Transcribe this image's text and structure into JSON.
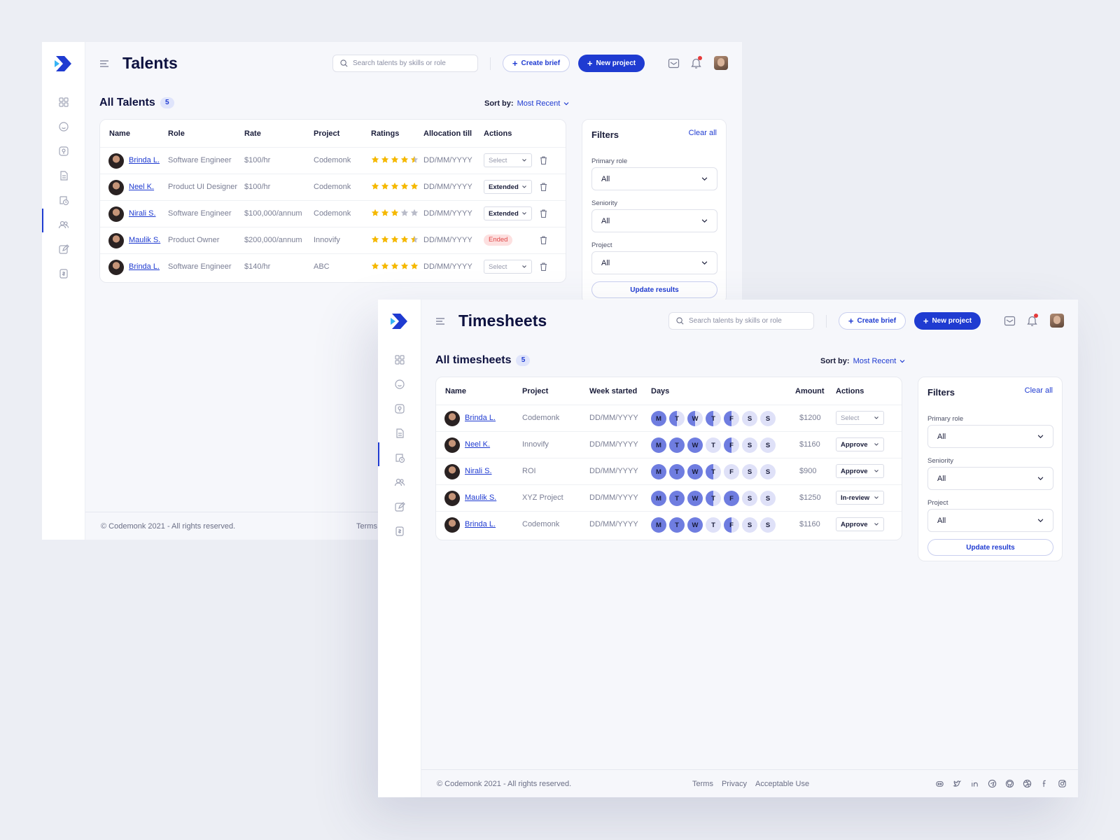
{
  "talents_window": {
    "title": "Talents",
    "search_placeholder": "Search talents by skills or role",
    "create_brief": "Create brief",
    "new_project": "New project",
    "section_title": "All Talents",
    "count": "5",
    "sort_label": "Sort by:",
    "sort_value": "Most Recent",
    "columns": [
      "Name",
      "Role",
      "Rate",
      "Project",
      "Ratings",
      "Allocation till",
      "Actions"
    ],
    "rows": [
      {
        "name": "Brinda L.",
        "role": "Software Engineer",
        "rate": "$100/hr",
        "project": "Codemonk",
        "rating": 4.5,
        "date": "DD/MM/YYYY",
        "action": "Select",
        "action_type": "select-dim"
      },
      {
        "name": "Neel K.",
        "role": "Product UI Designer",
        "rate": "$100/hr",
        "project": "Codemonk",
        "rating": 5,
        "date": "DD/MM/YYYY",
        "action": "Extended",
        "action_type": "select-strong"
      },
      {
        "name": "Nirali S.",
        "role": "Software Engineer",
        "rate": "$100,000/annum",
        "project": "Codemonk",
        "rating": 3,
        "date": "DD/MM/YYYY",
        "action": "Extended",
        "action_type": "select-strong"
      },
      {
        "name": "Maulik S.",
        "role": "Product Owner",
        "rate": "$200,000/annum",
        "project": "Innovify",
        "rating": 4.5,
        "date": "DD/MM/YYYY",
        "action": "Ended",
        "action_type": "badge"
      },
      {
        "name": "Brinda L.",
        "role": "Software Engineer",
        "rate": "$140/hr",
        "project": "ABC",
        "rating": 5,
        "date": "DD/MM/YYYY",
        "action": "Select",
        "action_type": "select-dim"
      }
    ],
    "filters": {
      "title": "Filters",
      "clear": "Clear all",
      "primary_role_label": "Primary role",
      "primary_role_value": "All",
      "seniority_label": "Seniority",
      "seniority_value": "All",
      "project_label": "Project",
      "project_value": "All",
      "update": "Update results"
    },
    "footer": {
      "copyright": "© Codemonk 2021 - All rights reserved.",
      "terms": "Terms"
    }
  },
  "timesheets_window": {
    "title": "Timesheets",
    "search_placeholder": "Search talents by skills or role",
    "create_brief": "Create brief",
    "new_project": "New project",
    "section_title": "All timesheets",
    "count": "5",
    "sort_label": "Sort by:",
    "sort_value": "Most Recent",
    "columns": [
      "Name",
      "Project",
      "Week started",
      "Days",
      "Amount",
      "Actions"
    ],
    "rows": [
      {
        "name": "Brinda L.",
        "project": "Codemonk",
        "week": "DD/MM/YYYY",
        "days": [
          "full",
          "half",
          "half",
          "half",
          "half",
          "empty",
          "empty"
        ],
        "amount": "$1200",
        "action": "Select",
        "action_type": "select-dim"
      },
      {
        "name": "Neel K.",
        "project": "Innovify",
        "week": "DD/MM/YYYY",
        "days": [
          "full",
          "full",
          "full",
          "empty",
          "half",
          "empty",
          "empty"
        ],
        "amount": "$1160",
        "action": "Approve",
        "action_type": "select-strong"
      },
      {
        "name": "Nirali S.",
        "project": "ROI",
        "week": "DD/MM/YYYY",
        "days": [
          "full",
          "full",
          "full",
          "half",
          "empty",
          "empty",
          "empty"
        ],
        "amount": "$900",
        "action": "Approve",
        "action_type": "select-strong"
      },
      {
        "name": "Maulik S.",
        "project": "XYZ Project",
        "week": "DD/MM/YYYY",
        "days": [
          "full",
          "full",
          "full",
          "half",
          "full",
          "empty",
          "empty"
        ],
        "amount": "$1250",
        "action": "In-review",
        "action_type": "select-strong"
      },
      {
        "name": "Brinda L.",
        "project": "Codemonk",
        "week": "DD/MM/YYYY",
        "days": [
          "full",
          "full",
          "full",
          "empty",
          "half",
          "empty",
          "empty"
        ],
        "amount": "$1160",
        "action": "Approve",
        "action_type": "select-strong"
      }
    ],
    "day_letters": [
      "M",
      "T",
      "W",
      "T",
      "F",
      "S",
      "S"
    ],
    "filters": {
      "title": "Filters",
      "clear": "Clear all",
      "primary_role_label": "Primary role",
      "primary_role_value": "All",
      "seniority_label": "Seniority",
      "seniority_value": "All",
      "project_label": "Project",
      "project_value": "All",
      "update": "Update results"
    },
    "footer": {
      "copyright": "© Codemonk 2021 - All rights reserved.",
      "links": [
        "Terms",
        "Privacy",
        "Acceptable Use"
      ],
      "social_icons": [
        "discord-icon",
        "twitter-icon",
        "linkedin-icon",
        "telegram-icon",
        "github-icon",
        "dribbble-icon",
        "facebook-icon",
        "instagram-icon"
      ]
    }
  },
  "colors": {
    "accent": "#1f3bd1",
    "star": "#f5b800",
    "day_filled": "#6f7de0",
    "day_empty": "#dfe1f8",
    "ended_bg": "#fde0e0",
    "ended_text": "#e04848"
  }
}
